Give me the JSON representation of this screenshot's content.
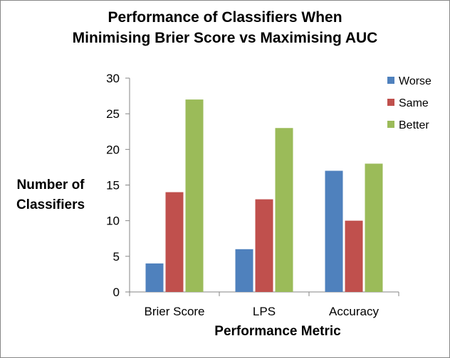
{
  "chart_data": {
    "type": "bar",
    "title_lines": [
      "Performance of Classifiers When",
      "Minimising Brier Score vs Maximising AUC"
    ],
    "xlabel": "Performance Metric",
    "ylabel_lines": [
      "Number of",
      "Classifiers"
    ],
    "categories": [
      "Brier Score",
      "LPS",
      "Accuracy"
    ],
    "series": [
      {
        "name": "Worse",
        "color": "#4f81bd",
        "values": [
          4,
          6,
          17
        ]
      },
      {
        "name": "Same",
        "color": "#c0504d",
        "values": [
          14,
          13,
          10
        ]
      },
      {
        "name": "Better",
        "color": "#9bbb59",
        "values": [
          27,
          23,
          18
        ]
      }
    ],
    "ylim": [
      0,
      30
    ],
    "yticks": [
      0,
      5,
      10,
      15,
      20,
      25,
      30
    ],
    "grid": false,
    "legend_position": "right"
  }
}
